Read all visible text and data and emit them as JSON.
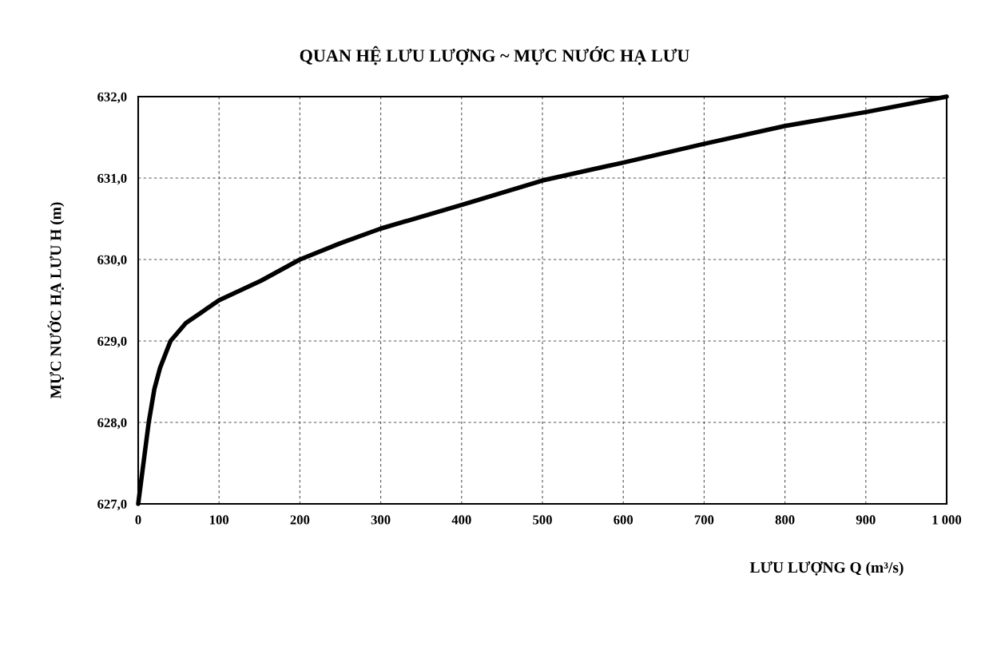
{
  "chart_data": {
    "type": "line",
    "title": "QUAN HỆ LƯU LƯỢNG ~ MỰC NƯỚC HẠ LƯU",
    "xlabel": "LƯU LƯỢNG Q (m³/s)",
    "ylabel": "MỰC NƯỚC HẠ LƯU H (m)",
    "series": [
      {
        "color": "#000000",
        "x": [
          0,
          13,
          20,
          27,
          40,
          59,
          100,
          152,
          200,
          250,
          300,
          400,
          500,
          600,
          700,
          800,
          900,
          1000
        ],
        "values": [
          627.0,
          628.0,
          628.41,
          628.67,
          629.0,
          629.22,
          629.5,
          629.74,
          630.0,
          630.2,
          630.38,
          630.67,
          630.97,
          631.19,
          631.42,
          631.64,
          631.81,
          632.0
        ]
      }
    ],
    "xlim": [
      0,
      1000
    ],
    "xticks": [
      0,
      100,
      200,
      300,
      400,
      500,
      600,
      700,
      800,
      900,
      {
        "value": 1000,
        "label": "1 000"
      }
    ],
    "ylim": [
      627,
      632
    ],
    "yticks": [
      {
        "value": 627,
        "label": "627,0"
      },
      {
        "value": 628,
        "label": "628,0"
      },
      {
        "value": 629,
        "label": "629,0"
      },
      {
        "value": 630,
        "label": "630,0"
      },
      {
        "value": 631,
        "label": "631,0"
      },
      {
        "value": 632,
        "label": "632,0"
      }
    ],
    "grid": true,
    "line_style": "solid",
    "marker": "none"
  }
}
